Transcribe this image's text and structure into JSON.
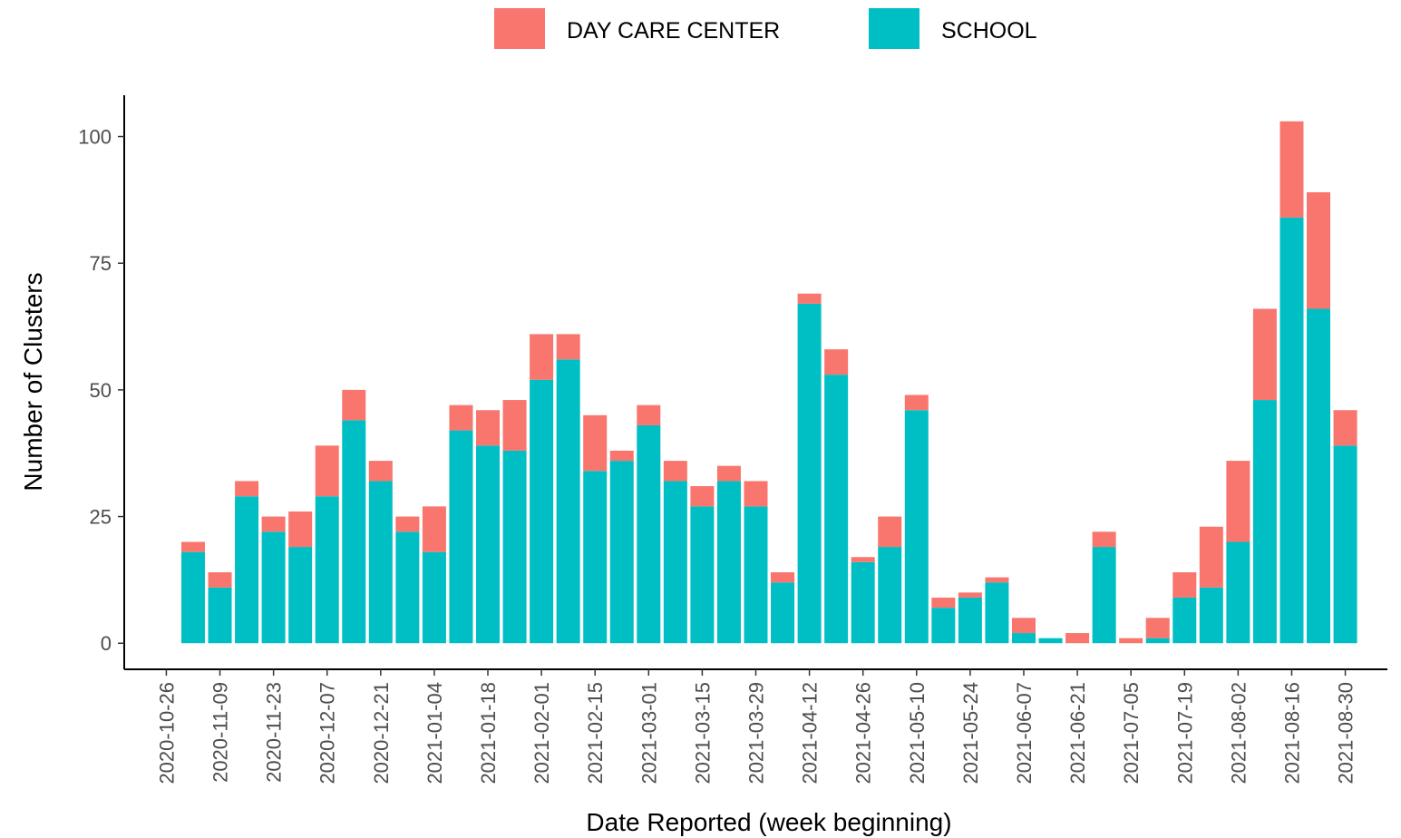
{
  "chart_data": {
    "type": "stacked_bar",
    "x_label": "Date Reported (week beginning)",
    "y_label": "Number of Clusters",
    "x": [
      "2020-11-02",
      "2020-11-09",
      "2020-11-16",
      "2020-11-23",
      "2020-11-30",
      "2020-12-07",
      "2020-12-14",
      "2020-12-21",
      "2020-12-28",
      "2021-01-04",
      "2021-01-11",
      "2021-01-18",
      "2021-01-25",
      "2021-02-01",
      "2021-02-08",
      "2021-02-15",
      "2021-02-22",
      "2021-03-01",
      "2021-03-08",
      "2021-03-15",
      "2021-03-22",
      "2021-03-29",
      "2021-04-05",
      "2021-04-12",
      "2021-04-19",
      "2021-04-26",
      "2021-05-03",
      "2021-05-10",
      "2021-05-17",
      "2021-05-24",
      "2021-05-31",
      "2021-06-07",
      "2021-06-14",
      "2021-06-21",
      "2021-06-28",
      "2021-07-05",
      "2021-07-12",
      "2021-07-19",
      "2021-07-26",
      "2021-08-02",
      "2021-08-09",
      "2021-08-16",
      "2021-08-23",
      "2021-08-30"
    ],
    "series": [
      {
        "name": "DAY CARE CENTER",
        "color": "#f8766d",
        "values": [
          2,
          3,
          3,
          3,
          7,
          10,
          6,
          4,
          3,
          9,
          5,
          7,
          10,
          9,
          5,
          11,
          2,
          4,
          4,
          4,
          3,
          5,
          2,
          2,
          5,
          1,
          6,
          3,
          2,
          1,
          1,
          3,
          0,
          2,
          3,
          1,
          4,
          5,
          12,
          16,
          18,
          19,
          23,
          7
        ]
      },
      {
        "name": "SCHOOL",
        "color": "#00bfc4",
        "values": [
          18,
          11,
          29,
          22,
          19,
          29,
          44,
          32,
          22,
          18,
          42,
          39,
          38,
          52,
          56,
          34,
          36,
          43,
          32,
          27,
          32,
          27,
          12,
          67,
          53,
          16,
          19,
          46,
          7,
          9,
          12,
          2,
          1,
          0,
          19,
          0,
          1,
          9,
          11,
          20,
          48,
          84,
          66,
          39
        ]
      }
    ],
    "xlim": [
      "2020-10-15",
      "2021-09-10"
    ],
    "xticks": [
      "2020-10-26",
      "2020-11-09",
      "2020-11-23",
      "2020-12-07",
      "2020-12-21",
      "2021-01-04",
      "2021-01-18",
      "2021-02-01",
      "2021-02-15",
      "2021-03-01",
      "2021-03-15",
      "2021-03-29",
      "2021-04-12",
      "2021-04-26",
      "2021-05-10",
      "2021-05-24",
      "2021-06-07",
      "2021-06-21",
      "2021-07-05",
      "2021-07-19",
      "2021-08-02",
      "2021-08-16",
      "2021-08-30"
    ],
    "ylim": [
      -5.15,
      108.15
    ],
    "yticks": [
      0,
      25,
      50,
      75,
      100
    ],
    "legend": "top"
  }
}
